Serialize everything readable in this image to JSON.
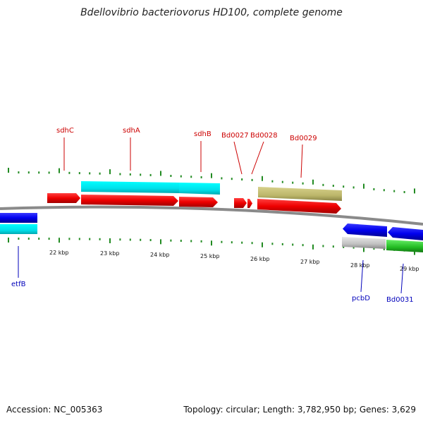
{
  "title": "Bdellovibrio bacteriovorus HD100, complete genome",
  "accession": "Accession: NC_005363",
  "summary": "Topology: circular; Length: 3,782,950 bp; Genes: 3,629",
  "kbp_labels": [
    "22 kbp",
    "23 kbp",
    "24 kbp",
    "25 kbp",
    "26 kbp",
    "27 kbp",
    "28 kbp",
    "29 kbp"
  ],
  "gene_labels": {
    "sdhC": "sdhC",
    "sdhA": "sdhA",
    "sdhB": "sdhB",
    "Bd0027": "Bd0027",
    "Bd0028": "Bd0028",
    "Bd0029": "Bd0029",
    "etfB": "etfB",
    "pcbD": "pcbD",
    "Bd0031": "Bd0031"
  },
  "colors": {
    "forward_label": "#cc0000",
    "reverse_label": "#0000bb",
    "red_gene": "#ee0000",
    "cyan_feature": "#00e5ee",
    "blue_gene": "#0000ee",
    "olive_feature": "#bdb76b",
    "gray_feature": "#c0c0c0",
    "green_feature": "#22bb22",
    "tick": "#228b22",
    "backbone": "#777777"
  }
}
